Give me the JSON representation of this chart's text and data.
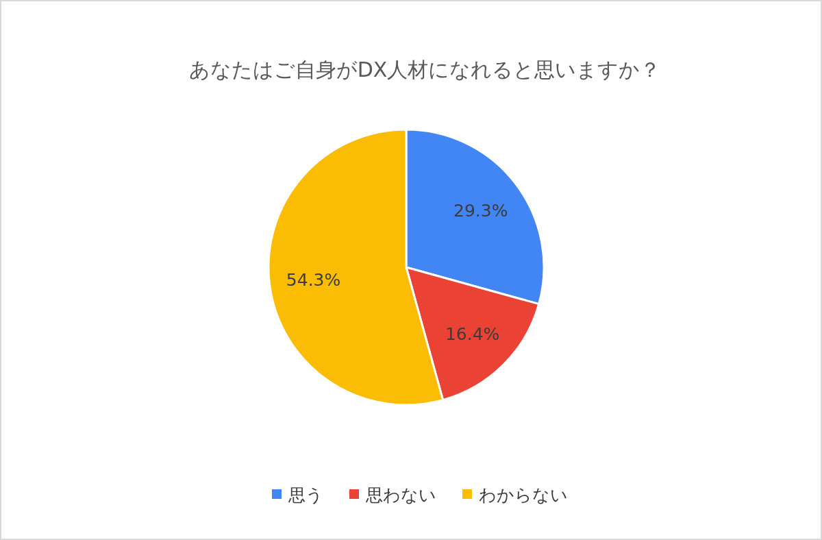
{
  "chart_data": {
    "type": "pie",
    "title": "あなたはご自身がDX人材になれると思いますか？",
    "categories": [
      "思う",
      "思わない",
      "わからない"
    ],
    "values": [
      29.3,
      16.4,
      54.3
    ],
    "colors": [
      "#4285f4",
      "#ea4335",
      "#fbbc04"
    ],
    "value_labels": [
      "29.3%",
      "16.4%",
      "54.3%"
    ],
    "legend": "bottom"
  }
}
